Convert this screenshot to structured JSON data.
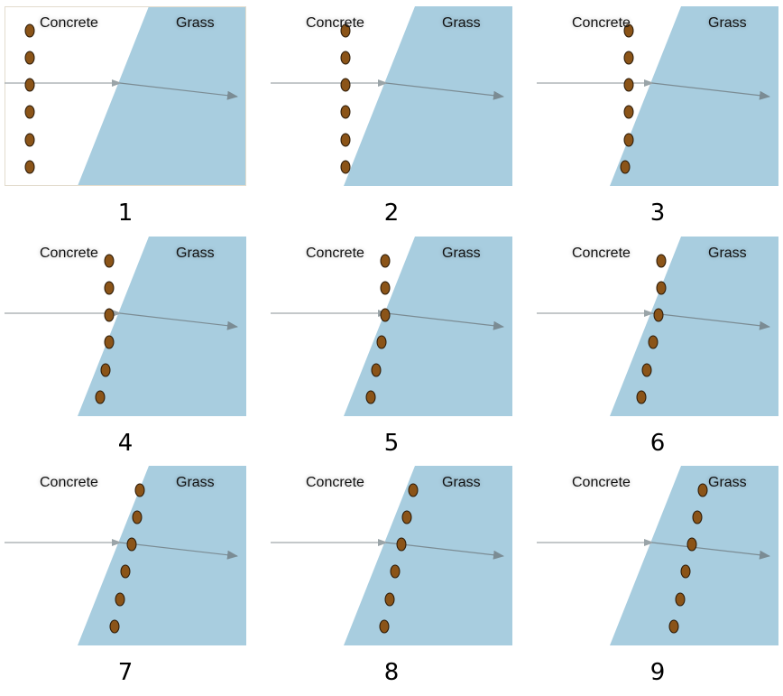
{
  "labels": {
    "concrete": "Concrete",
    "grass": "Grass"
  },
  "panels": [
    {
      "number": "1"
    },
    {
      "number": "2"
    },
    {
      "number": "3"
    },
    {
      "number": "4"
    },
    {
      "number": "5"
    },
    {
      "number": "6"
    },
    {
      "number": "7"
    },
    {
      "number": "8"
    },
    {
      "number": "9"
    }
  ],
  "colors": {
    "grass": "#a8cddf",
    "dot": "#8b5418",
    "ray": "#7b8c94",
    "border": "#e3dccd"
  }
}
